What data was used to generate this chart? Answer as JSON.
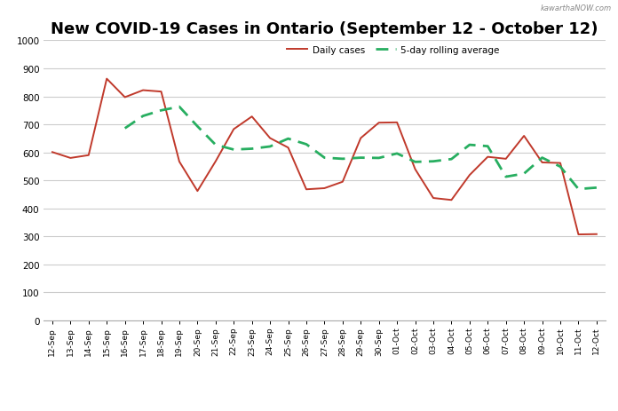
{
  "title": "New COVID-19 Cases in Ontario (September 12 - October 12)",
  "watermark": "kawarthaNOW.com",
  "labels": [
    "12-Sep",
    "13-Sep",
    "14-Sep",
    "15-Sep",
    "16-Sep",
    "17-Sep",
    "18-Sep",
    "19-Sep",
    "20-Sep",
    "21-Sep",
    "22-Sep",
    "23-Sep",
    "24-Sep",
    "25-Sep",
    "26-Sep",
    "27-Sep",
    "28-Sep",
    "29-Sep",
    "30-Sep",
    "01-Oct",
    "02-Oct",
    "03-Oct",
    "04-Oct",
    "05-Oct",
    "06-Oct",
    "07-Oct",
    "08-Oct",
    "09-Oct",
    "10-Oct",
    "11-Oct",
    "12-Oct"
  ],
  "daily_cases": [
    601,
    580,
    590,
    863,
    797,
    822,
    817,
    567,
    462,
    568,
    683,
    728,
    651,
    617,
    468,
    472,
    495,
    651,
    706,
    707,
    540,
    437,
    430,
    519,
    584,
    577,
    659,
    564,
    562,
    307,
    308
  ],
  "rolling_avg": [
    null,
    null,
    null,
    null,
    686,
    730,
    750,
    763,
    693,
    627,
    610,
    613,
    621,
    649,
    629,
    581,
    577,
    581,
    580,
    596,
    566,
    568,
    576,
    627,
    622,
    513,
    524,
    581,
    549,
    469,
    474
  ],
  "ylim": [
    0,
    1000
  ],
  "yticks": [
    0,
    100,
    200,
    300,
    400,
    500,
    600,
    700,
    800,
    900,
    1000
  ],
  "daily_color": "#c0392b",
  "rolling_color": "#27ae60",
  "background_color": "#ffffff",
  "grid_color": "#cccccc",
  "title_fontsize": 13,
  "legend_daily": "Daily cases",
  "legend_rolling": "5-day rolling average"
}
